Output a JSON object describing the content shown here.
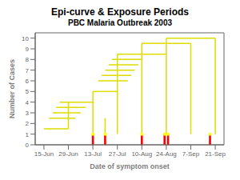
{
  "chart_data": {
    "type": "line",
    "title": "Epi-curve & Exposure Periods",
    "subtitle": "PBC Malaria Outbreak 2003",
    "xlabel": "Date of symptom onset",
    "ylabel": "Number of Cases",
    "xlim": [
      -5,
      103
    ],
    "ylim": [
      0,
      10.5
    ],
    "xticks": [
      {
        "value": 0,
        "label": "15-Jun"
      },
      {
        "value": 14,
        "label": "29-Jun"
      },
      {
        "value": 28,
        "label": "13-Jul"
      },
      {
        "value": 42,
        "label": "27-Jul"
      },
      {
        "value": 56,
        "label": "10-Aug"
      },
      {
        "value": 70,
        "label": "24-Aug"
      },
      {
        "value": 84,
        "label": "7-Sep"
      },
      {
        "value": 98,
        "label": "21-Sep"
      }
    ],
    "yticks": [
      0,
      1,
      2,
      3,
      4,
      5,
      6,
      7,
      8,
      9,
      10
    ],
    "grid": false,
    "series": [
      {
        "type": "line",
        "color": "#DDDD00",
        "segments": [
          {
            "x": [
              0,
              14
            ],
            "values": [
              1.5,
              1.5
            ]
          },
          {
            "x": [
              3,
              18
            ],
            "values": [
              2.5,
              2.5
            ]
          },
          {
            "x": [
              5,
              21
            ],
            "values": [
              3.0,
              3.0
            ]
          },
          {
            "x": [
              7,
              24
            ],
            "values": [
              3.5,
              3.5
            ]
          },
          {
            "x": [
              9,
              28
            ],
            "values": [
              4.0,
              4.0
            ]
          },
          {
            "x": [
              28,
              42
            ],
            "values": [
              5.0,
              5.0
            ]
          },
          {
            "x": [
              31,
              48
            ],
            "values": [
              6.0,
              6.0
            ]
          },
          {
            "x": [
              33,
              50
            ],
            "values": [
              6.5,
              6.5
            ]
          },
          {
            "x": [
              35,
              52
            ],
            "values": [
              7.0,
              7.0
            ]
          },
          {
            "x": [
              37,
              54
            ],
            "values": [
              7.5,
              7.5
            ]
          },
          {
            "x": [
              39,
              56
            ],
            "values": [
              8.0,
              8.0
            ]
          },
          {
            "x": [
              42,
              70
            ],
            "values": [
              8.5,
              8.5
            ]
          },
          {
            "x": [
              56,
              84
            ],
            "values": [
              9.5,
              9.5
            ]
          },
          {
            "x": [
              70,
              98
            ],
            "values": [
              10.0,
              10.0
            ]
          },
          {
            "x": [
              14,
              14
            ],
            "values": [
              1.5,
              4.0
            ]
          },
          {
            "x": [
              28,
              28
            ],
            "values": [
              1.0,
              5.0
            ]
          },
          {
            "x": [
              35,
              35
            ],
            "values": [
              1.0,
              2.5
            ]
          },
          {
            "x": [
              42,
              42
            ],
            "values": [
              1.0,
              8.5
            ]
          },
          {
            "x": [
              56,
              56
            ],
            "values": [
              1.0,
              9.5
            ]
          },
          {
            "x": [
              70,
              70
            ],
            "values": [
              1.0,
              10.0
            ]
          },
          {
            "x": [
              84,
              84
            ],
            "values": [
              1.0,
              9.5
            ]
          },
          {
            "x": [
              98,
              98
            ],
            "values": [
              1.0,
              10.0
            ]
          }
        ]
      },
      {
        "type": "bar",
        "color": "#FF0000",
        "x": [
          28,
          35,
          56,
          69,
          71,
          95
        ],
        "values": [
          1.0,
          1.0,
          1.0,
          1.0,
          1.0,
          1.0
        ]
      },
      {
        "type": "scatter",
        "color": "#FFFF00",
        "marker": "circle",
        "x": [
          28,
          35,
          56,
          69,
          71,
          95
        ],
        "values": [
          1.0,
          1.0,
          1.0,
          1.0,
          1.0,
          1.0
        ]
      }
    ]
  }
}
